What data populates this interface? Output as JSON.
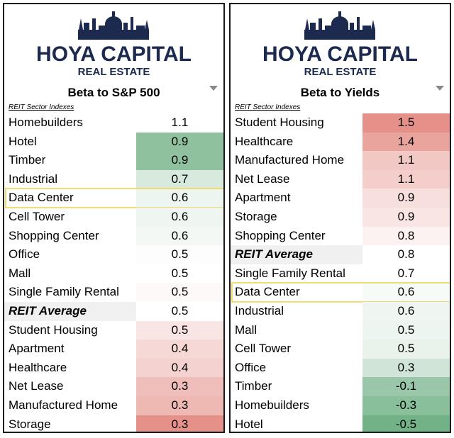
{
  "logo": {
    "line1": "HOYA CAPITAL",
    "line2": "REAL ESTATE",
    "color": "#1b2a4e"
  },
  "colors": {
    "high": "#63a97a",
    "low": "#e07d75",
    "highlight_border": "#f2dc72"
  },
  "chart_data": [
    {
      "type": "table",
      "title": "Beta to S&P 500",
      "section_label": "REIT Sector Indexes",
      "categories": [
        "Homebuilders",
        "Hotel",
        "Timber",
        "Industrial",
        "Data Center",
        "Cell Tower",
        "Shopping Center",
        "Office",
        "Mall",
        "Single Family Rental",
        "REIT Average",
        "Student Housing",
        "Apartment",
        "Healthcare",
        "Net Lease",
        "Manufactured Home",
        "Storage"
      ],
      "values": [
        1.1,
        0.9,
        0.9,
        0.7,
        0.6,
        0.6,
        0.6,
        0.5,
        0.5,
        0.5,
        0.5,
        0.5,
        0.4,
        0.4,
        0.3,
        0.3,
        0.3
      ],
      "display": [
        "1.1",
        "0.9",
        "0.9",
        "0.7",
        "0.6",
        "0.6",
        "0.6",
        "0.5",
        "0.5",
        "0.5",
        "0.5",
        "0.5",
        "0.4",
        "0.4",
        "0.3",
        "0.3",
        "0.3"
      ],
      "color_scale": [
        0,
        -0.72,
        -0.72,
        -0.25,
        -0.12,
        -0.1,
        -0.08,
        -0.02,
        0,
        0.05,
        0,
        0.2,
        0.3,
        0.35,
        0.5,
        0.55,
        0.85
      ],
      "average_row": "REIT Average",
      "highlighted_row": "Data Center"
    },
    {
      "type": "table",
      "title": "Beta to Yields",
      "section_label": "REIT Sector Indexes",
      "categories": [
        "Student Housing",
        "Healthcare",
        "Manufactured Home",
        "Net Lease",
        "Apartment",
        "Storage",
        "Shopping Center",
        "REIT Average",
        "Single Family Rental",
        "Data Center",
        "Industrial",
        "Mall",
        "Cell Tower",
        "Office",
        "Timber",
        "Homebuilders",
        "Hotel"
      ],
      "values": [
        1.5,
        1.4,
        1.1,
        1.1,
        0.9,
        0.9,
        0.8,
        0.8,
        0.7,
        0.6,
        0.6,
        0.5,
        0.5,
        0.3,
        -0.1,
        -0.3,
        -0.5
      ],
      "display": [
        "1.5",
        "1.4",
        "1.1",
        "1.1",
        "0.9",
        "0.9",
        "0.8",
        "0.8",
        "0.7",
        "0.6",
        "0.6",
        "0.5",
        "0.5",
        "0.3",
        "-0.1",
        "-0.3",
        "-0.5"
      ],
      "color_scale": [
        0.85,
        0.7,
        0.42,
        0.38,
        0.25,
        0.2,
        0.1,
        0,
        0,
        -0.05,
        -0.1,
        -0.12,
        -0.14,
        -0.3,
        -0.65,
        -0.75,
        -0.9
      ],
      "average_row": "REIT Average",
      "highlighted_row": "Data Center"
    }
  ]
}
